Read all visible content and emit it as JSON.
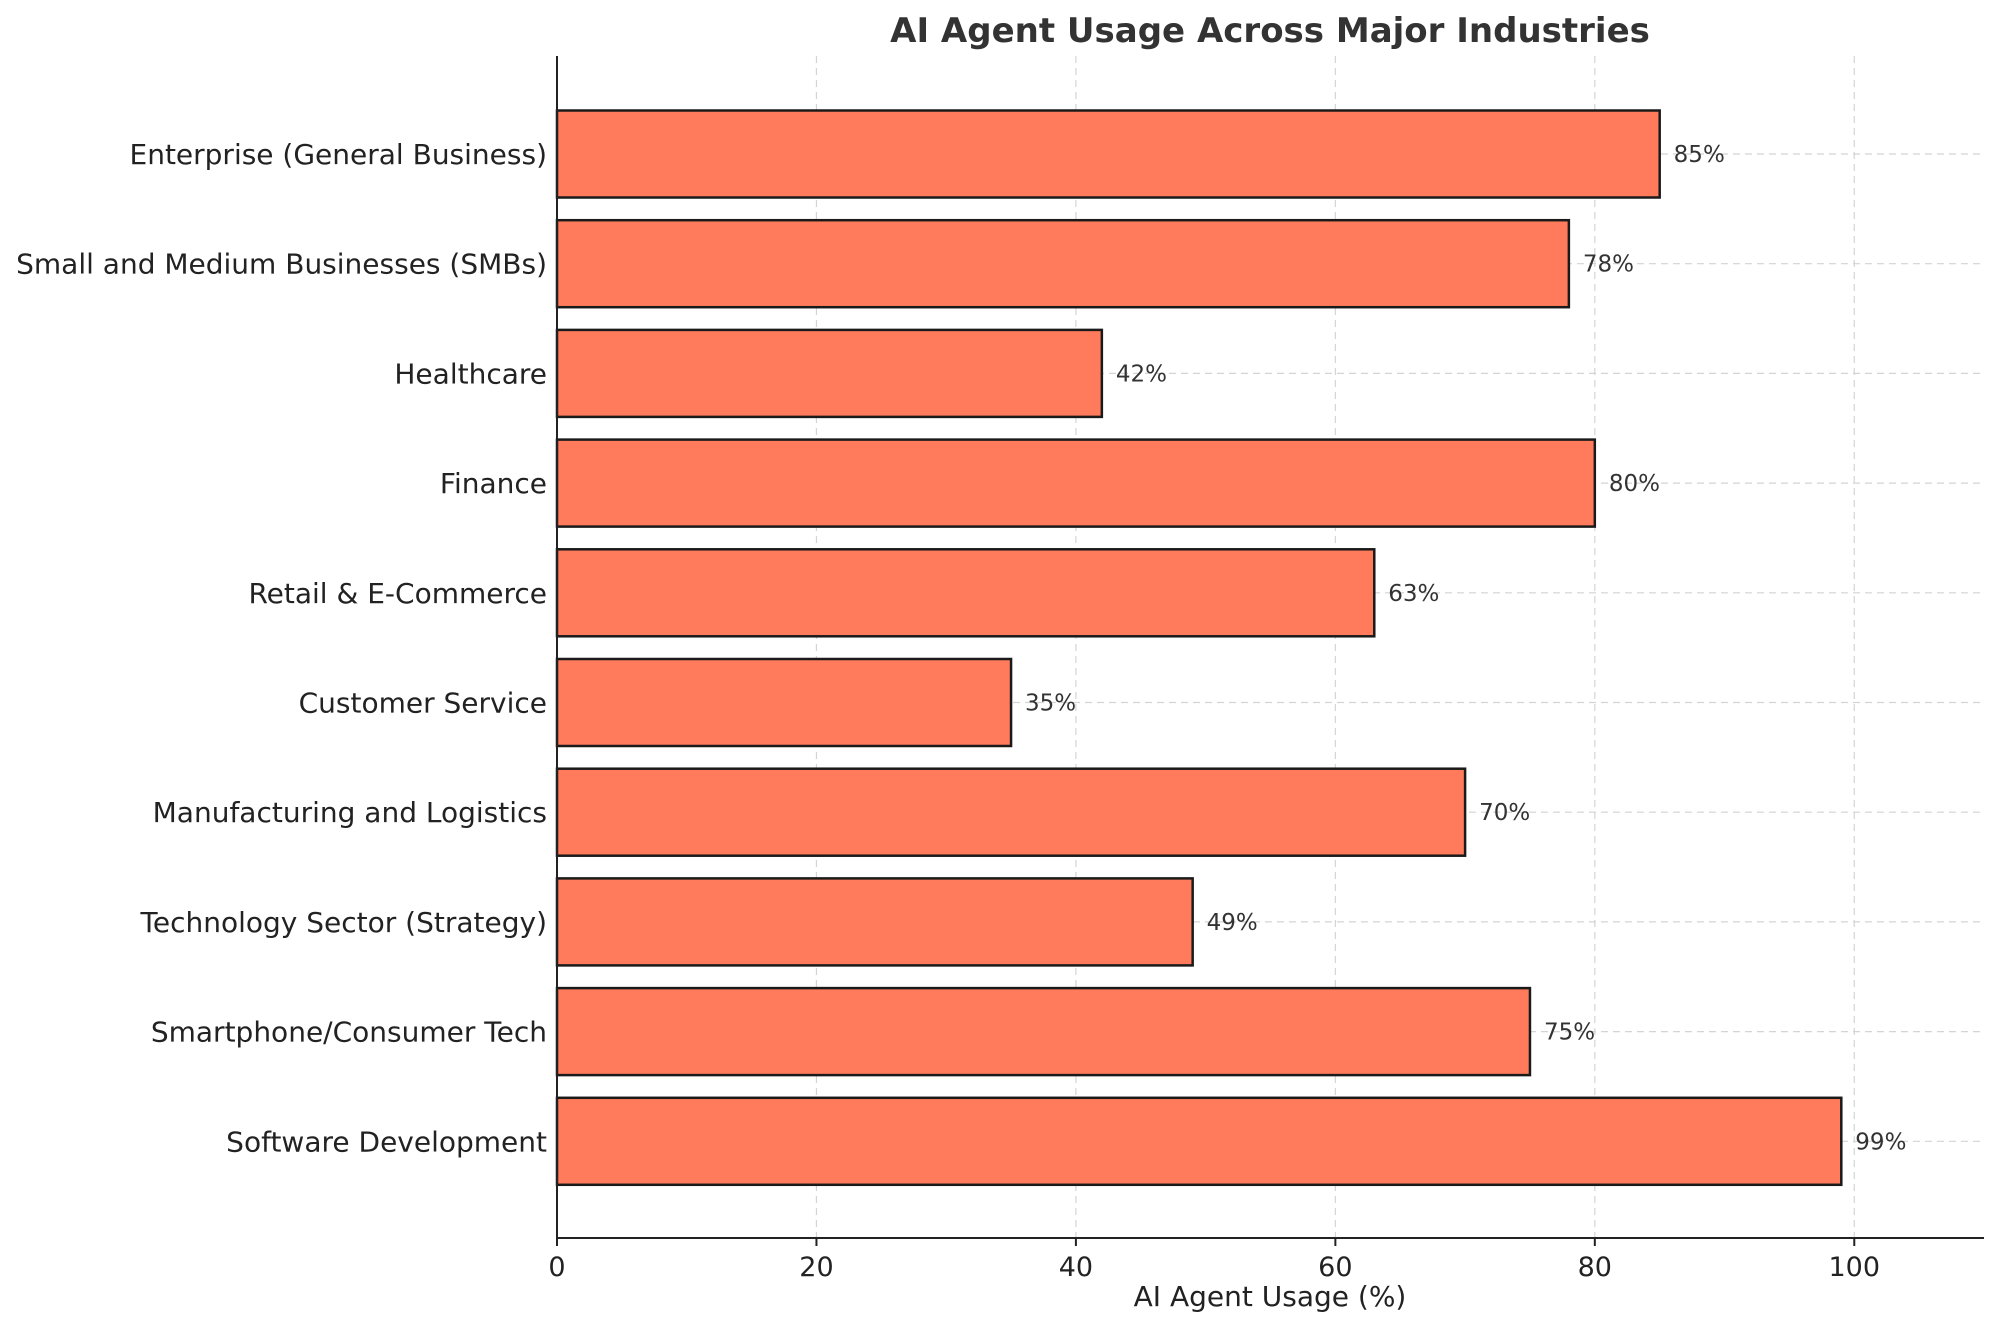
{
  "chart_data": {
    "type": "bar",
    "orientation": "horizontal",
    "title": "AI Agent Usage Across Major Industries",
    "xlabel": "AI Agent Usage (%)",
    "ylabel": "",
    "xlim": [
      0,
      110
    ],
    "xticks": [
      0,
      20,
      40,
      60,
      80,
      100
    ],
    "grid": true,
    "bar_color": "#FF7B5C",
    "categories": [
      "Enterprise (General Business)",
      "Small and Medium Businesses (SMBs)",
      "Healthcare",
      "Finance",
      "Retail & E-Commerce",
      "Customer Service",
      "Manufacturing and Logistics",
      "Technology Sector (Strategy)",
      "Smartphone/Consumer Tech",
      "Software Development"
    ],
    "values": [
      85,
      78,
      42,
      80,
      63,
      35,
      70,
      49,
      75,
      99
    ],
    "value_labels": [
      "85%",
      "78%",
      "42%",
      "80%",
      "63%",
      "35%",
      "70%",
      "49%",
      "75%",
      "99%"
    ]
  }
}
